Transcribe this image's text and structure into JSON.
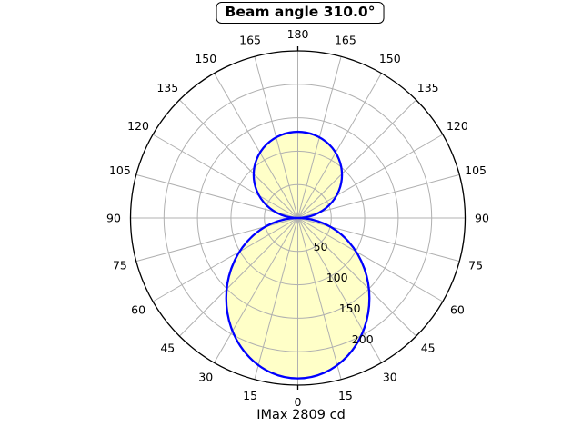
{
  "chart_data": {
    "type": "polar",
    "title": "Beam angle 310.0°",
    "footer": "IMax 2809 cd",
    "beam_angle_deg": 310.0,
    "imax_cd": 2809,
    "angle_tick_labels_deg": [
      0,
      15,
      30,
      45,
      60,
      75,
      90,
      105,
      120,
      135,
      150,
      165,
      180
    ],
    "mirrored_labels": true,
    "angle_zero_position": "bottom",
    "radial_tick_values": [
      50,
      100,
      150,
      200
    ],
    "r_max": 250,
    "radial_label_angle_deg": 22.5,
    "grid_step_deg": 15,
    "lobes": [
      {
        "name": "lower-beam-lobe",
        "direction": "down",
        "extent": 240,
        "half_width": 107
      },
      {
        "name": "upper-beam-lobe",
        "direction": "up",
        "extent": 129,
        "half_width": 66
      }
    ],
    "colors": {
      "fill": "#ffffc8",
      "stroke": "#0000ff",
      "grid": "#b0b0b0",
      "outer": "#000000",
      "text": "#000000"
    }
  }
}
